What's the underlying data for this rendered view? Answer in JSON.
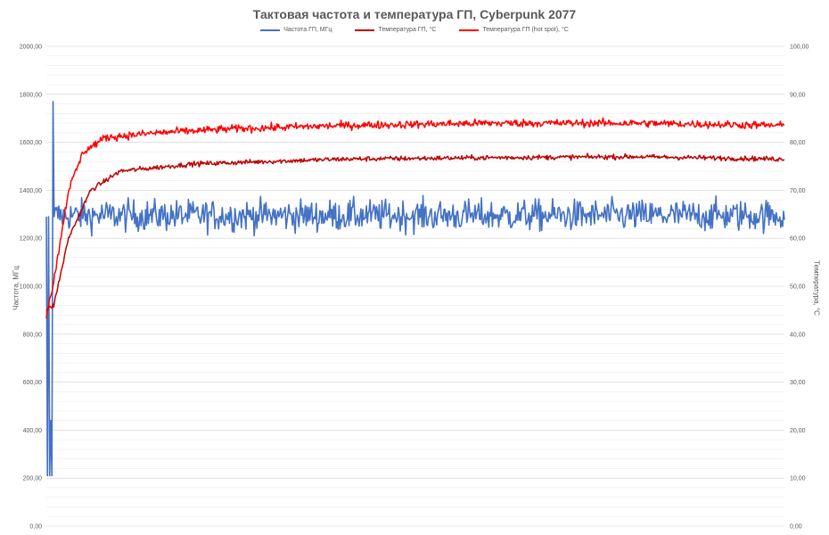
{
  "chart_data": {
    "type": "line",
    "title": "Тактовая частота и температура ГП, Cyberpunk 2077",
    "y_left_label": "Частота, МГц",
    "y_right_label": "Температура, °С",
    "y_left_ticks": [
      "0,00",
      "200,00",
      "400,00",
      "600,00",
      "800,00",
      "1000,00",
      "1200,00",
      "1400,00",
      "1600,00",
      "1800,00",
      "2000,00"
    ],
    "y_right_ticks": [
      "0,00",
      "10,00",
      "20,00",
      "30,00",
      "40,00",
      "50,00",
      "60,00",
      "70,00",
      "80,00",
      "90,00",
      "100,00"
    ],
    "ylim_left": [
      0,
      2000
    ],
    "ylim_right": [
      0,
      100
    ],
    "grid": "horizontal minor and major",
    "legend_position": "top",
    "series": [
      {
        "name": "Частота ГП, МГц",
        "axis": "left",
        "color": "#4472C4",
        "profile": {
          "startup_spikes": [
            1290,
            210,
            1290,
            210,
            440,
            210,
            1770,
            1290
          ],
          "steady_mean": 1295,
          "steady_min": 1180,
          "steady_max": 1410,
          "samples": 800
        }
      },
      {
        "name": "Температура ГП, °С",
        "axis": "right",
        "color": "#C00000",
        "profile": {
          "start": 45,
          "values_by_fraction": [
            [
              0.0,
              45
            ],
            [
              0.01,
              46
            ],
            [
              0.03,
              60
            ],
            [
              0.06,
              70
            ],
            [
              0.1,
              74
            ],
            [
              0.2,
              75.5
            ],
            [
              0.3,
              76
            ],
            [
              0.4,
              76.5
            ],
            [
              0.6,
              76.8
            ],
            [
              0.8,
              77
            ],
            [
              1.0,
              76.5
            ]
          ],
          "noise": 0.25
        }
      },
      {
        "name": "Температура ГП (hot spot), °С",
        "axis": "right",
        "color": "#FF0000",
        "profile": {
          "start": 44,
          "values_by_fraction": [
            [
              0.0,
              44
            ],
            [
              0.01,
              51
            ],
            [
              0.03,
              70
            ],
            [
              0.05,
              78
            ],
            [
              0.08,
              81
            ],
            [
              0.15,
              82
            ],
            [
              0.25,
              82.8
            ],
            [
              0.4,
              83.5
            ],
            [
              0.6,
              84
            ],
            [
              0.8,
              84
            ],
            [
              1.0,
              83.5
            ]
          ],
          "noise": 0.4
        }
      }
    ]
  }
}
